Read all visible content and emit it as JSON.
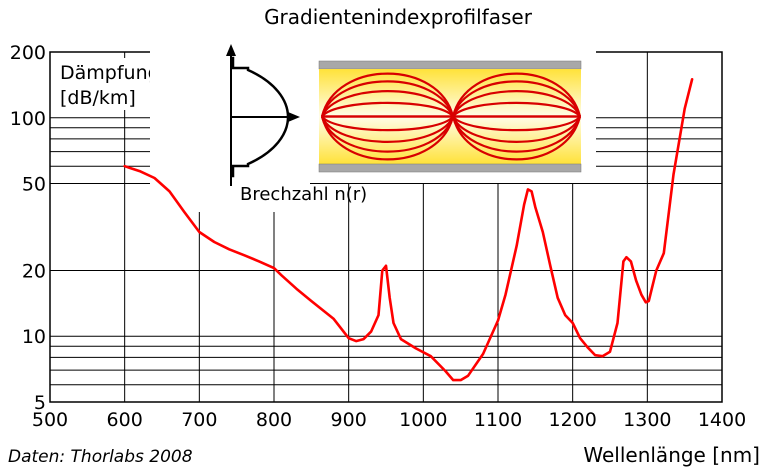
{
  "chart_data": {
    "type": "line",
    "title": "Gradientenindexprofilfaser",
    "xlabel": "Wellenlänge [nm]",
    "ylabel_line1": "Dämpfung",
    "ylabel_line2": "[dB/km]",
    "source": "Daten: Thorlabs 2008",
    "x_scale": "linear",
    "y_scale": "log",
    "xlim": [
      500,
      1400
    ],
    "ylim": [
      5,
      200
    ],
    "grid": true,
    "xticks": [
      500,
      600,
      700,
      800,
      900,
      1000,
      1100,
      1200,
      1300,
      1400
    ],
    "yticks_labeled": [
      5,
      10,
      20,
      50,
      100,
      200
    ],
    "y_minor_gridlines": [
      6,
      7,
      8,
      9,
      60,
      70,
      80,
      90
    ],
    "series": [
      {
        "color": "#ff0000",
        "x": [
          600,
          620,
          640,
          660,
          680,
          700,
          720,
          740,
          760,
          780,
          800,
          810,
          830,
          850,
          880,
          900,
          910,
          920,
          930,
          940,
          945,
          950,
          955,
          960,
          970,
          990,
          1010,
          1030,
          1040,
          1050,
          1060,
          1080,
          1100,
          1110,
          1125,
          1135,
          1140,
          1145,
          1150,
          1160,
          1170,
          1180,
          1190,
          1200,
          1210,
          1220,
          1230,
          1240,
          1250,
          1260,
          1268,
          1272,
          1278,
          1285,
          1292,
          1298,
          1302,
          1306,
          1312,
          1322,
          1335,
          1350,
          1360
        ],
        "y": [
          60,
          57,
          53,
          46,
          37,
          30,
          27,
          25,
          23.5,
          22,
          20.5,
          19,
          16.5,
          14.5,
          12,
          9.8,
          9.5,
          9.7,
          10.5,
          12.5,
          20,
          21,
          15,
          11.5,
          9.7,
          8.8,
          8.1,
          6.9,
          6.3,
          6.3,
          6.6,
          8.3,
          11.8,
          15.5,
          26,
          40,
          47,
          46,
          39,
          30,
          21,
          15,
          12.5,
          11.5,
          9.8,
          8.9,
          8.2,
          8.1,
          8.5,
          11.5,
          22,
          23,
          22,
          18,
          15.5,
          14.3,
          14.5,
          16.5,
          20,
          24,
          55,
          110,
          150
        ]
      }
    ],
    "inset": {
      "index_axis_label": "Brechzahl n(r)"
    }
  }
}
